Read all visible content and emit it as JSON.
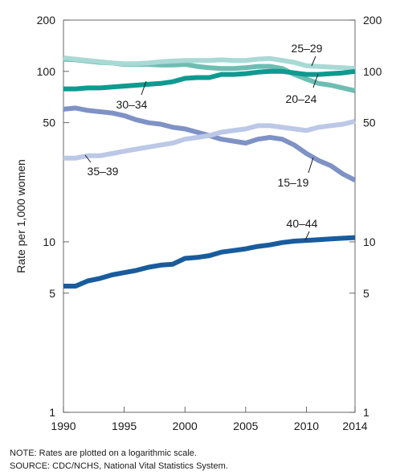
{
  "chart_data": {
    "type": "line",
    "title": "",
    "xlabel": "",
    "ylabel": "Rate per 1,000 women",
    "yscale": "log",
    "xlim": [
      1990,
      2014
    ],
    "ylim": [
      1,
      200
    ],
    "x_ticks": [
      "1990",
      "1995",
      "2000",
      "2005",
      "2010",
      "2014"
    ],
    "y_ticks": [
      "1",
      "5",
      "10",
      "50",
      "100",
      "200"
    ],
    "x": [
      1990,
      1991,
      1992,
      1993,
      1994,
      1995,
      1996,
      1997,
      1998,
      1999,
      2000,
      2001,
      2002,
      2003,
      2004,
      2005,
      2006,
      2007,
      2008,
      2009,
      2010,
      2011,
      2012,
      2013,
      2014
    ],
    "series": [
      {
        "name": "15–19",
        "color": "#7f92c6",
        "values": [
          60,
          61,
          59,
          58,
          57,
          55,
          52,
          50,
          49,
          47,
          46,
          44,
          42,
          40,
          39,
          38,
          40,
          41,
          40,
          37,
          33,
          30,
          28,
          25,
          23
        ]
      },
      {
        "name": "20–24",
        "color": "#6dbdb2",
        "values": [
          118,
          117,
          115,
          113,
          112,
          110,
          110,
          110,
          109,
          109,
          110,
          107,
          105,
          104,
          104,
          105,
          107,
          107,
          104,
          96,
          90,
          85,
          83,
          80,
          77
        ]
      },
      {
        "name": "25–29",
        "color": "#a9d9d5",
        "values": [
          120,
          118,
          116,
          114,
          112,
          111,
          111,
          112,
          114,
          115,
          116,
          116,
          116,
          117,
          116,
          116,
          118,
          119,
          116,
          113,
          108,
          107,
          106,
          105,
          104
        ]
      },
      {
        "name": "30–34",
        "color": "#0e9a90",
        "values": [
          79,
          79,
          80,
          80,
          81,
          82,
          83,
          84,
          85,
          87,
          91,
          92,
          92,
          96,
          96,
          97,
          99,
          100,
          100,
          98,
          96,
          96,
          97,
          98,
          100
        ]
      },
      {
        "name": "35–39",
        "color": "#bcc8e6",
        "values": [
          31,
          31,
          32,
          32,
          33,
          34,
          35,
          36,
          37,
          38,
          40,
          41,
          42,
          44,
          45,
          46,
          48,
          48,
          47,
          46,
          45,
          47,
          48,
          49,
          51
        ]
      },
      {
        "name": "40–44",
        "color": "#195c9e",
        "values": [
          5.5,
          5.5,
          5.9,
          6.1,
          6.4,
          6.6,
          6.8,
          7.1,
          7.3,
          7.4,
          8.0,
          8.1,
          8.3,
          8.7,
          8.9,
          9.1,
          9.4,
          9.6,
          9.9,
          10.1,
          10.2,
          10.3,
          10.4,
          10.5,
          10.6
        ]
      }
    ]
  },
  "note": "NOTE: Rates are plotted on a logarithmic scale.",
  "source": "SOURCE: CDC/NCHS, National Vital Statistics System."
}
